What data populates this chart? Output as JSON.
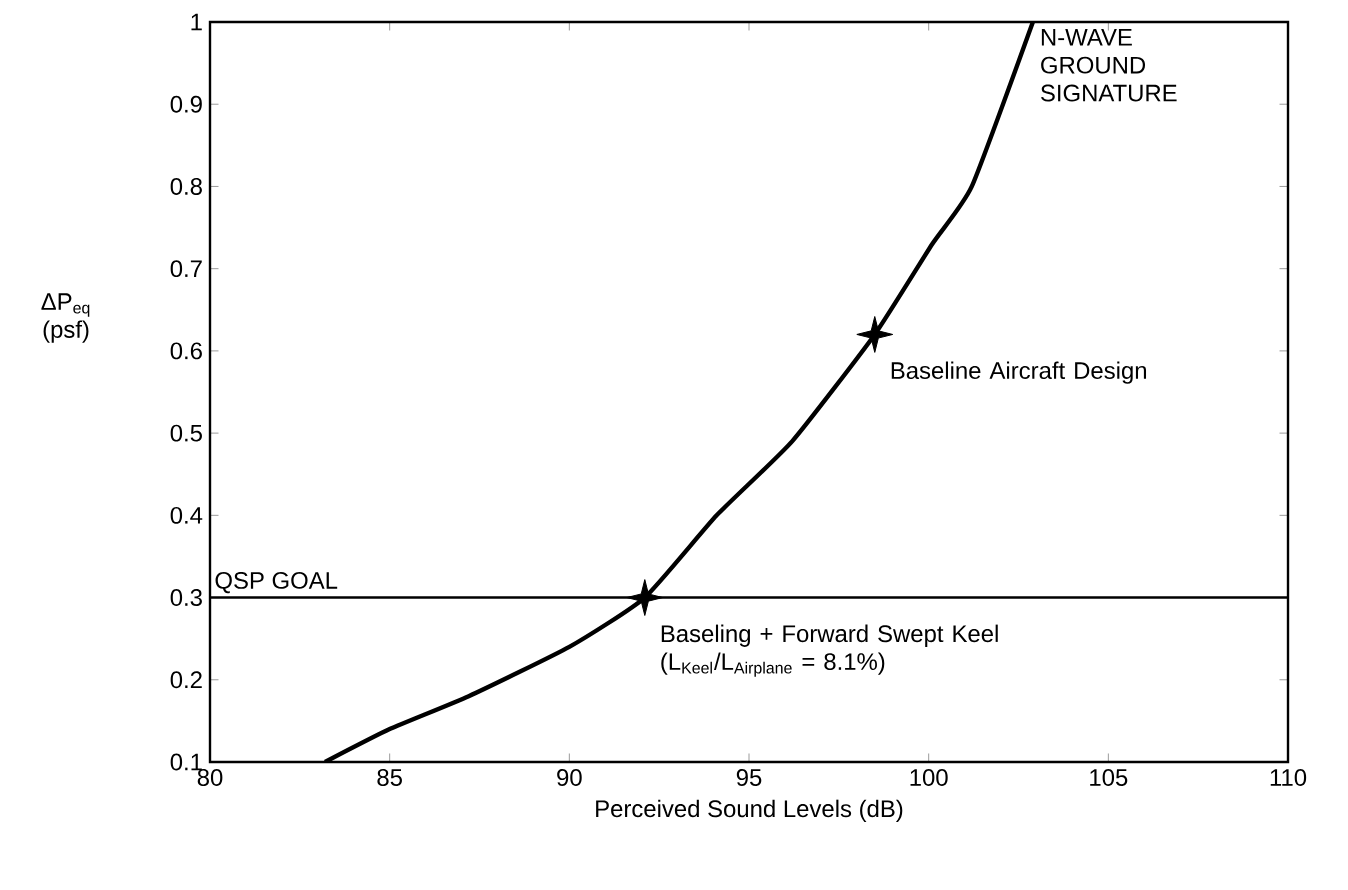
{
  "chart_data": {
    "type": "line",
    "xlabel": "Perceived Sound Levels (dB)",
    "ylabel": "ΔP$_{eq}$ (psf)",
    "xlim": [
      80,
      110
    ],
    "ylim": [
      0.1,
      1
    ],
    "xticks": [
      80,
      85,
      90,
      95,
      100,
      105,
      110
    ],
    "yticks": [
      0.1,
      0.2,
      0.3,
      0.4,
      0.5,
      0.6,
      0.7,
      0.8,
      0.9,
      1
    ],
    "grid": false,
    "legend": false,
    "series": [
      {
        "name": "N-WAVE GROUND SIGNATURE",
        "color": "#000000",
        "marker": "none",
        "line_style": "solid",
        "x": [
          83.2,
          85.0,
          87.2,
          90.0,
          92.1,
          94.1,
          96.2,
          98.5,
          100.1,
          101.2,
          102.9
        ],
        "values": [
          0.1,
          0.14,
          0.18,
          0.24,
          0.3,
          0.4,
          0.49,
          0.62,
          0.73,
          0.8,
          1
        ]
      },
      {
        "type": "scatter",
        "color": "#000000",
        "marker": "star",
        "x": [
          92.1,
          98.5
        ],
        "values": [
          0.3,
          0.62
        ]
      }
    ],
    "ref_lines": [
      {
        "axis": "y",
        "value": 0.3,
        "label": "QSP GOAL"
      }
    ],
    "annotations": [
      {
        "text": "Baseline Aircraft Design",
        "x": 98.5,
        "y": 0.62
      },
      {
        "text": "Baseling + Forward Swept Keel (L$_{Keel}$/L$_{Airplane}$ = 8.1%)",
        "x": 92.1,
        "y": 0.3
      }
    ]
  }
}
